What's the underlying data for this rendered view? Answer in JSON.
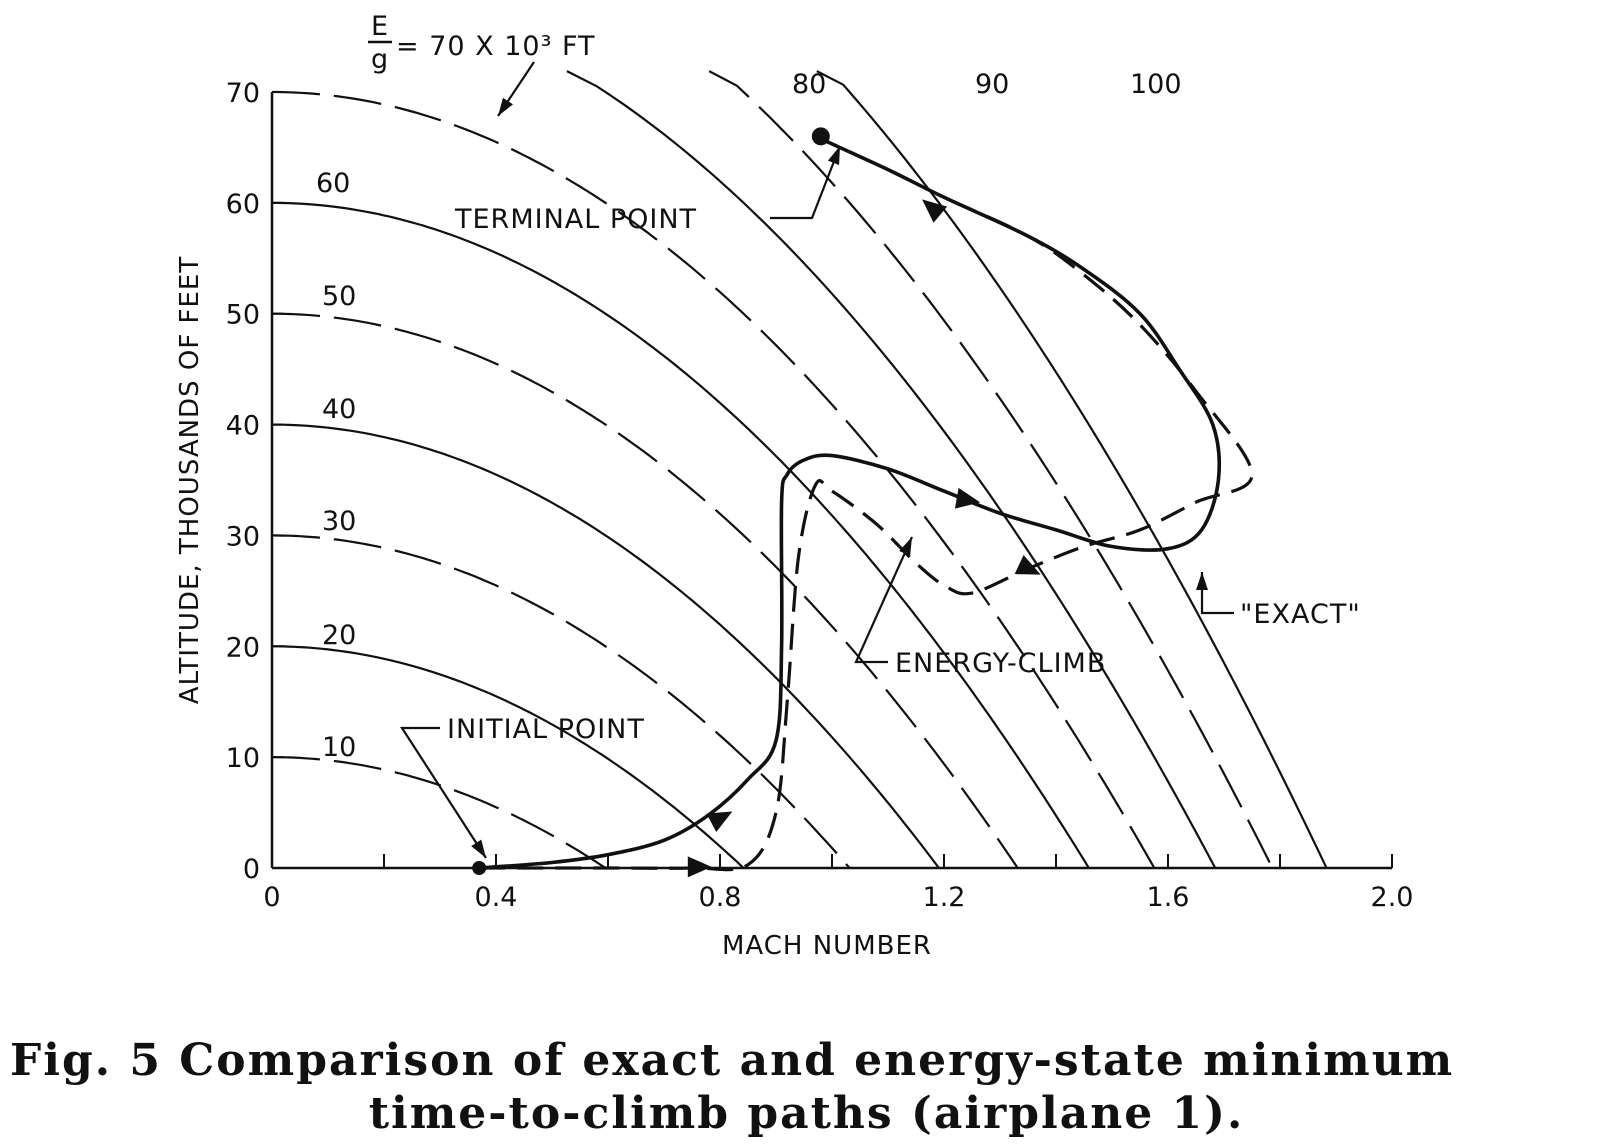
{
  "chart_data": {
    "type": "line",
    "xlabel": "MACH NUMBER",
    "ylabel": "ALTITUDE, THOUSANDS OF FEET",
    "xlim": [
      0,
      2.0
    ],
    "ylim": [
      0,
      70
    ],
    "x_ticks": [
      0,
      0.4,
      0.8,
      1.2,
      1.6,
      2.0
    ],
    "x_tick_labels": [
      "0",
      "0.4",
      "0.8",
      "1.2",
      "1.6",
      "2.0"
    ],
    "y_ticks": [
      0,
      10,
      20,
      30,
      40,
      50,
      60,
      70
    ],
    "y_tick_labels": [
      "0",
      "10",
      "20",
      "30",
      "40",
      "50",
      "60",
      "70"
    ],
    "energy_contours": [
      {
        "label": "10",
        "value": 10
      },
      {
        "label": "20",
        "value": 20
      },
      {
        "label": "30",
        "value": 30
      },
      {
        "label": "40",
        "value": 40
      },
      {
        "label": "50",
        "value": 50
      },
      {
        "label": "60",
        "value": 60
      },
      {
        "label": "= 70 X 10³ FT",
        "value": 70
      },
      {
        "label": "80",
        "value": 80
      },
      {
        "label": "90",
        "value": 90
      },
      {
        "label": "100",
        "value": 100
      }
    ],
    "energy_label_prefix": {
      "numerator": "E",
      "denominator": "g"
    },
    "series": [
      {
        "name": "\"EXACT\"",
        "style": "solid",
        "x": [
          0.37,
          0.5,
          0.6,
          0.7,
          0.78,
          0.85,
          0.9,
          0.91,
          0.91,
          0.92,
          0.95,
          1.0,
          1.1,
          1.2,
          1.3,
          1.4,
          1.5,
          1.6,
          1.66,
          1.69,
          1.68,
          1.62,
          1.55,
          1.45,
          1.35,
          1.2,
          1.1,
          0.97
        ],
        "y": [
          0,
          0.5,
          1.2,
          2.5,
          4.8,
          8.0,
          11.5,
          20,
          33,
          35.5,
          36.8,
          37.2,
          36.0,
          34.0,
          32.0,
          30.5,
          29.0,
          28.8,
          30.5,
          35,
          40,
          45,
          50,
          54,
          57,
          60.5,
          63,
          66
        ]
      },
      {
        "name": "ENERGY-CLIMB",
        "style": "dashed",
        "x": [
          0.37,
          0.6,
          0.75,
          0.85,
          0.9,
          0.92,
          0.94,
          0.97,
          1.0,
          1.08,
          1.15,
          1.2,
          1.25,
          1.35,
          1.45,
          1.55,
          1.65,
          1.75,
          1.65,
          1.55,
          1.45,
          1.35,
          1.2,
          1.1,
          0.97
        ],
        "y": [
          0,
          0,
          0,
          0.3,
          5,
          15,
          28,
          34.5,
          34.0,
          31.0,
          27.5,
          25.5,
          24.8,
          27.0,
          29.0,
          30.5,
          33.0,
          35.5,
          43,
          49,
          53.5,
          57,
          60.5,
          63,
          66
        ]
      }
    ],
    "annotations": [
      {
        "text": "TERMINAL POINT",
        "x": 0.98,
        "y": 66
      },
      {
        "text": "INITIAL POINT",
        "x": 0.37,
        "y": 0
      },
      {
        "text": "ENERGY-CLIMB",
        "x": 1.09,
        "y": 31
      },
      {
        "text": "\"EXACT\"",
        "x": 1.59,
        "y": 28.5
      }
    ]
  },
  "caption": {
    "line1": "Fig. 5   Comparison of exact and energy-state minimum",
    "line2": "time-to-climb paths (airplane 1)."
  }
}
